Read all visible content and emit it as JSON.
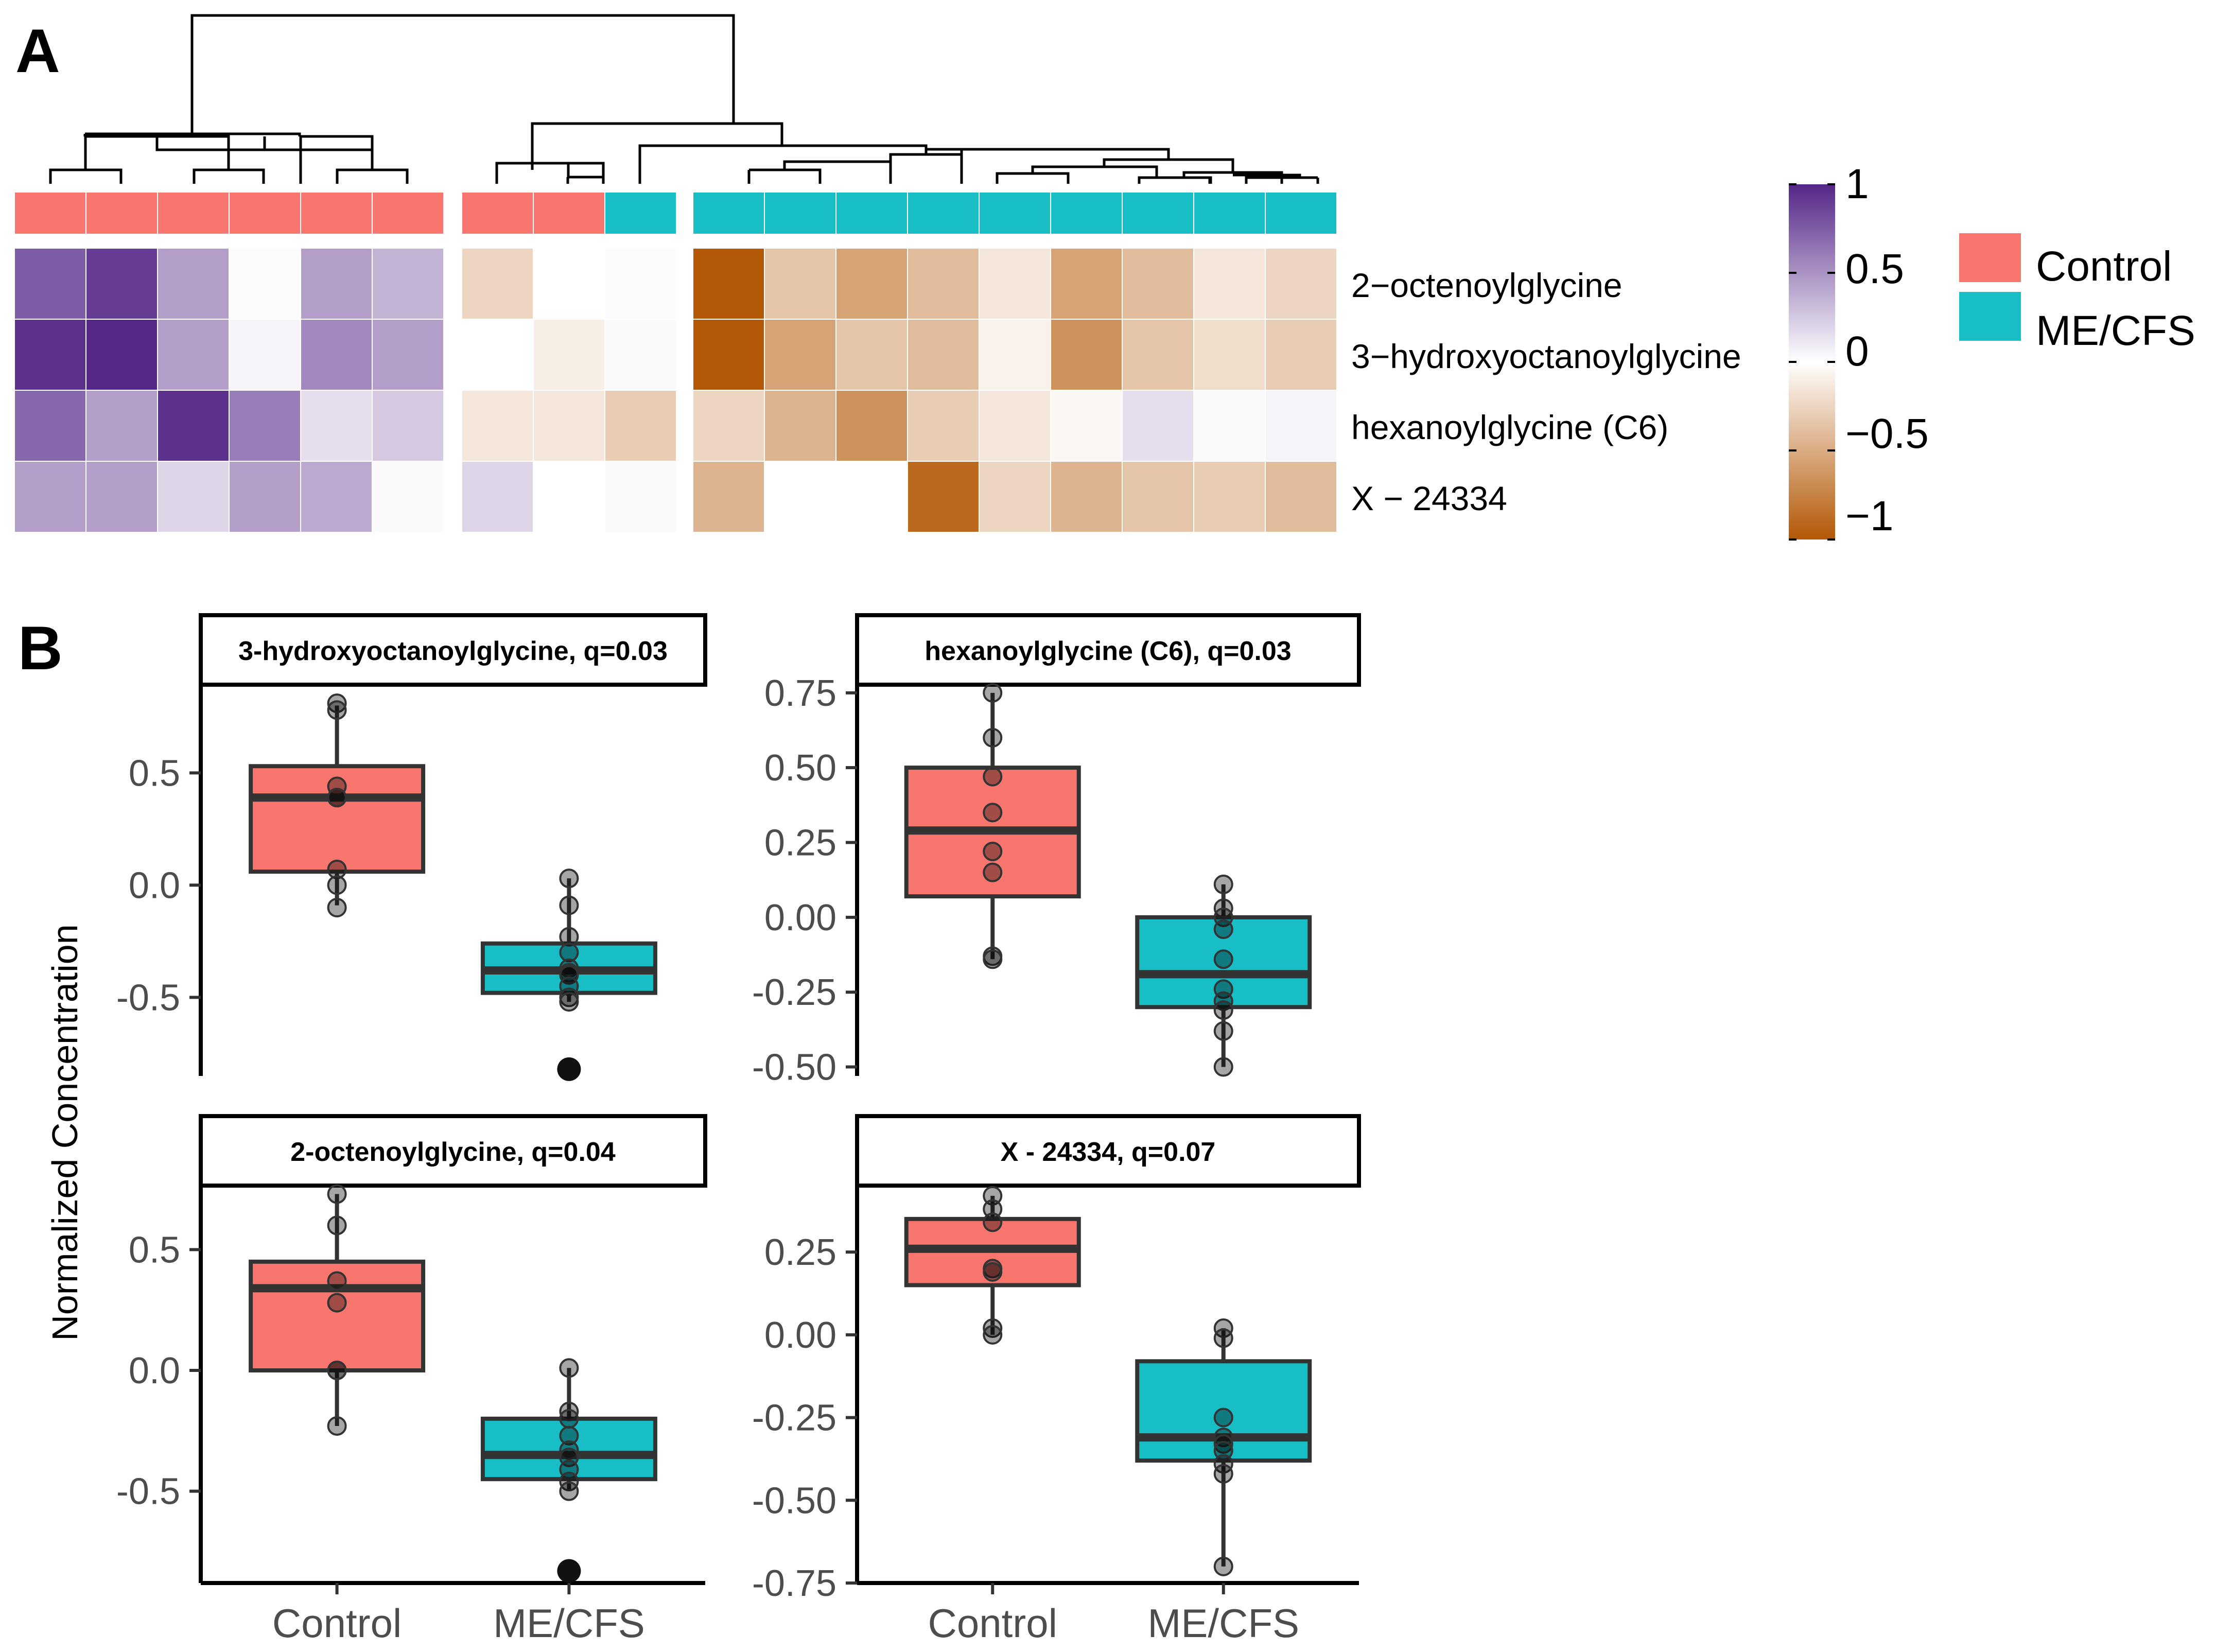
{
  "panel_labels": {
    "a": "A",
    "b": "B"
  },
  "colors": {
    "control": "#f8766d",
    "mecfs": "#17bec6",
    "scale_high": "#542788",
    "scale_mid": "#ffffff",
    "scale_low": "#b35806"
  },
  "chart_data": [
    {
      "type": "heatmap",
      "panel": "A",
      "rows": [
        "2−octenoylglycine",
        "3−hydroxyoctanoylglycine",
        "hexanoylglycine (C6)",
        "X − 24334"
      ],
      "column_groups": [
        [
          "Control",
          "Control",
          "Control",
          "Control",
          "Control",
          "Control"
        ],
        [
          "Control",
          "Control",
          "ME/CFS"
        ],
        [
          "ME/CFS",
          "ME/CFS",
          "ME/CFS",
          "ME/CFS",
          "ME/CFS",
          "ME/CFS",
          "ME/CFS",
          "ME/CFS",
          "ME/CFS"
        ]
      ],
      "values": [
        [
          0.75,
          0.9,
          0.45,
          0.02,
          0.45,
          0.35,
          -0.25,
          0.0,
          0.02,
          -1.0,
          -0.35,
          -0.55,
          -0.4,
          -0.15,
          -0.55,
          -0.4,
          -0.15,
          -0.25
        ],
        [
          0.95,
          1.0,
          0.45,
          0.05,
          0.55,
          0.45,
          0.0,
          -0.1,
          0.03,
          -1.0,
          -0.55,
          -0.35,
          -0.4,
          -0.08,
          -0.65,
          -0.35,
          -0.2,
          -0.3
        ],
        [
          0.7,
          0.45,
          0.95,
          0.6,
          0.15,
          0.25,
          -0.15,
          -0.15,
          -0.3,
          -0.25,
          -0.45,
          -0.65,
          -0.3,
          -0.15,
          -0.05,
          0.15,
          0.03,
          0.05
        ],
        [
          0.45,
          0.45,
          0.2,
          0.45,
          0.4,
          0.03,
          0.2,
          0.0,
          0.03,
          -0.45,
          0.0,
          0.0,
          -0.9,
          -0.25,
          -0.45,
          -0.35,
          -0.3,
          -0.4
        ]
      ],
      "color_scale": {
        "min": -1,
        "max": 1,
        "ticks": [
          "1",
          "0.5",
          "0",
          "−0.5",
          "−1"
        ]
      },
      "legend": [
        "Control",
        "ME/CFS"
      ]
    },
    {
      "type": "box",
      "panel": "B",
      "title": "3-hydroxyoctanoylglycine, q=0.03",
      "categories": [
        "Control",
        "ME/CFS"
      ],
      "ylim": [
        -0.85,
        0.87
      ],
      "yticks": [
        -0.5,
        0.0,
        0.5
      ],
      "ytick_labels": [
        "-0.5",
        "0.0",
        "0.5"
      ],
      "boxes": [
        {
          "group": "Control",
          "q1": 0.06,
          "median": 0.39,
          "q3": 0.53,
          "whisker_low": -0.09,
          "whisker_high": 0.8,
          "points": [
            0.81,
            0.78,
            0.44,
            0.39,
            0.39,
            0.07,
            0.0,
            -0.1
          ],
          "outliers": []
        },
        {
          "group": "ME/CFS",
          "q1": -0.48,
          "median": -0.38,
          "q3": -0.26,
          "whisker_low": -0.52,
          "whisker_high": 0.03,
          "points": [
            0.03,
            -0.09,
            -0.23,
            -0.3,
            -0.37,
            -0.39,
            -0.4,
            -0.45,
            -0.5,
            -0.52
          ],
          "outliers": [
            -0.82
          ]
        }
      ]
    },
    {
      "type": "box",
      "panel": "B",
      "title": "hexanoylglycine (C6), q=0.03",
      "categories": [
        "Control",
        "ME/CFS"
      ],
      "ylim": [
        -0.53,
        0.76
      ],
      "yticks": [
        -0.5,
        -0.25,
        0.0,
        0.25,
        0.5,
        0.75
      ],
      "ytick_labels": [
        "-0.50",
        "-0.25",
        "0.00",
        "0.25",
        "0.50",
        "0.75"
      ],
      "boxes": [
        {
          "group": "Control",
          "q1": 0.07,
          "median": 0.29,
          "q3": 0.5,
          "whisker_low": -0.14,
          "whisker_high": 0.75,
          "points": [
            0.75,
            0.6,
            0.47,
            0.35,
            0.22,
            0.15,
            -0.13,
            -0.14
          ],
          "outliers": []
        },
        {
          "group": "ME/CFS",
          "q1": -0.3,
          "median": -0.19,
          "q3": 0.0,
          "whisker_low": -0.5,
          "whisker_high": 0.11,
          "points": [
            0.11,
            0.03,
            0.0,
            -0.04,
            -0.14,
            -0.24,
            -0.28,
            -0.31,
            -0.38,
            -0.5
          ],
          "outliers": []
        }
      ]
    },
    {
      "type": "box",
      "panel": "B",
      "title": "2-octenoylglycine, q=0.04",
      "categories": [
        "Control",
        "ME/CFS"
      ],
      "ylim": [
        -0.88,
        0.75
      ],
      "yticks": [
        -0.5,
        0.0,
        0.5
      ],
      "ytick_labels": [
        "-0.5",
        "0.0",
        "0.5"
      ],
      "boxes": [
        {
          "group": "Control",
          "q1": 0.0,
          "median": 0.34,
          "q3": 0.45,
          "whisker_low": -0.23,
          "whisker_high": 0.73,
          "points": [
            0.73,
            0.6,
            0.37,
            0.28,
            0.0,
            0.0,
            -0.23
          ],
          "outliers": []
        },
        {
          "group": "ME/CFS",
          "q1": -0.45,
          "median": -0.35,
          "q3": -0.2,
          "whisker_low": -0.5,
          "whisker_high": 0.01,
          "points": [
            0.01,
            -0.17,
            -0.2,
            -0.27,
            -0.33,
            -0.36,
            -0.41,
            -0.46,
            -0.5
          ],
          "outliers": [
            -0.83
          ]
        }
      ]
    },
    {
      "type": "box",
      "panel": "B",
      "title": "X - 24334, q=0.07",
      "categories": [
        "Control",
        "ME/CFS"
      ],
      "ylim": [
        -0.75,
        0.44
      ],
      "yticks": [
        -0.75,
        -0.5,
        -0.25,
        0.0,
        0.25
      ],
      "ytick_labels": [
        "-0.75",
        "-0.50",
        "-0.25",
        "0.00",
        "0.25"
      ],
      "boxes": [
        {
          "group": "Control",
          "q1": 0.15,
          "median": 0.26,
          "q3": 0.35,
          "whisker_low": 0.0,
          "whisker_high": 0.42,
          "points": [
            0.42,
            0.38,
            0.34,
            0.2,
            0.19,
            0.02,
            0.0
          ],
          "outliers": []
        },
        {
          "group": "ME/CFS",
          "q1": -0.38,
          "median": -0.31,
          "q3": -0.08,
          "whisker_low": -0.7,
          "whisker_high": 0.02,
          "points": [
            0.02,
            -0.01,
            -0.25,
            -0.31,
            -0.33,
            -0.35,
            -0.39,
            -0.42,
            -0.7
          ],
          "outliers": []
        }
      ]
    }
  ],
  "shared_ylabel": "Normalized Concentration"
}
